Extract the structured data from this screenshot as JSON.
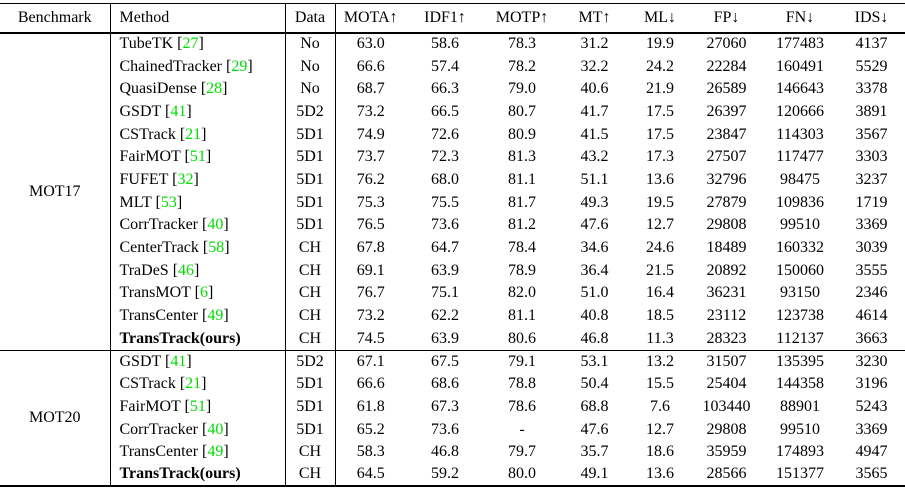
{
  "table": {
    "columns": [
      {
        "label": "Benchmark"
      },
      {
        "label": "Method"
      },
      {
        "label": "Data"
      },
      {
        "label": "MOTA↑"
      },
      {
        "label": "IDF1↑"
      },
      {
        "label": "MOTP↑"
      },
      {
        "label": "MT↑"
      },
      {
        "label": "ML↓"
      },
      {
        "label": "FP↓"
      },
      {
        "label": "FN↓"
      },
      {
        "label": "IDS↓"
      }
    ],
    "sections": [
      {
        "benchmark": "MOT17",
        "rows": [
          {
            "method": "TubeTK",
            "cite": "27",
            "bold": false,
            "data": "No",
            "metrics": [
              "63.0",
              "58.6",
              "78.3",
              "31.2",
              "19.9",
              "27060",
              "177483",
              "4137"
            ]
          },
          {
            "method": "ChainedTracker",
            "cite": "29",
            "bold": false,
            "data": "No",
            "metrics": [
              "66.6",
              "57.4",
              "78.2",
              "32.2",
              "24.2",
              "22284",
              "160491",
              "5529"
            ]
          },
          {
            "method": "QuasiDense",
            "cite": "28",
            "bold": false,
            "data": "No",
            "metrics": [
              "68.7",
              "66.3",
              "79.0",
              "40.6",
              "21.9",
              "26589",
              "146643",
              "3378"
            ]
          },
          {
            "method": "GSDT",
            "cite": "41",
            "bold": false,
            "data": "5D2",
            "metrics": [
              "73.2",
              "66.5",
              "80.7",
              "41.7",
              "17.5",
              "26397",
              "120666",
              "3891"
            ]
          },
          {
            "method": "CSTrack",
            "cite": "21",
            "bold": false,
            "data": "5D1",
            "metrics": [
              "74.9",
              "72.6",
              "80.9",
              "41.5",
              "17.5",
              "23847",
              "114303",
              "3567"
            ]
          },
          {
            "method": "FairMOT",
            "cite": "51",
            "bold": false,
            "data": "5D1",
            "metrics": [
              "73.7",
              "72.3",
              "81.3",
              "43.2",
              "17.3",
              "27507",
              "117477",
              "3303"
            ]
          },
          {
            "method": "FUFET",
            "cite": "32",
            "bold": false,
            "data": "5D1",
            "metrics": [
              "76.2",
              "68.0",
              "81.1",
              "51.1",
              "13.6",
              "32796",
              "98475",
              "3237"
            ]
          },
          {
            "method": "MLT",
            "cite": "53",
            "bold": false,
            "data": "5D1",
            "metrics": [
              "75.3",
              "75.5",
              "81.7",
              "49.3",
              "19.5",
              "27879",
              "109836",
              "1719"
            ]
          },
          {
            "method": "CorrTracker",
            "cite": "40",
            "bold": false,
            "data": "5D1",
            "metrics": [
              "76.5",
              "73.6",
              "81.2",
              "47.6",
              "12.7",
              "29808",
              "99510",
              "3369"
            ]
          },
          {
            "method": "CenterTrack",
            "cite": "58",
            "bold": false,
            "data": "CH",
            "metrics": [
              "67.8",
              "64.7",
              "78.4",
              "34.6",
              "24.6",
              "18489",
              "160332",
              "3039"
            ]
          },
          {
            "method": "TraDeS",
            "cite": "46",
            "bold": false,
            "data": "CH",
            "metrics": [
              "69.1",
              "63.9",
              "78.9",
              "36.4",
              "21.5",
              "20892",
              "150060",
              "3555"
            ]
          },
          {
            "method": "TransMOT",
            "cite": "6",
            "bold": false,
            "data": "CH",
            "metrics": [
              "76.7",
              "75.1",
              "82.0",
              "51.0",
              "16.4",
              "36231",
              "93150",
              "2346"
            ]
          },
          {
            "method": "TransCenter",
            "cite": "49",
            "bold": false,
            "data": "CH",
            "metrics": [
              "73.2",
              "62.2",
              "81.1",
              "40.8",
              "18.5",
              "23112",
              "123738",
              "4614"
            ]
          },
          {
            "method": "TransTrack(ours)",
            "cite": null,
            "bold": true,
            "data": "CH",
            "metrics": [
              "74.5",
              "63.9",
              "80.6",
              "46.8",
              "11.3",
              "28323",
              "112137",
              "3663"
            ]
          }
        ]
      },
      {
        "benchmark": "MOT20",
        "rows": [
          {
            "method": "GSDT",
            "cite": "41",
            "bold": false,
            "data": "5D2",
            "metrics": [
              "67.1",
              "67.5",
              "79.1",
              "53.1",
              "13.2",
              "31507",
              "135395",
              "3230"
            ]
          },
          {
            "method": "CSTrack",
            "cite": "21",
            "bold": false,
            "data": "5D1",
            "metrics": [
              "66.6",
              "68.6",
              "78.8",
              "50.4",
              "15.5",
              "25404",
              "144358",
              "3196"
            ]
          },
          {
            "method": "FairMOT",
            "cite": "51",
            "bold": false,
            "data": "5D1",
            "metrics": [
              "61.8",
              "67.3",
              "78.6",
              "68.8",
              "7.6",
              "103440",
              "88901",
              "5243"
            ]
          },
          {
            "method": "CorrTracker",
            "cite": "40",
            "bold": false,
            "data": "5D1",
            "metrics": [
              "65.2",
              "73.6",
              "-",
              "47.6",
              "12.7",
              "29808",
              "99510",
              "3369"
            ]
          },
          {
            "method": "TransCenter",
            "cite": "49",
            "bold": false,
            "data": "CH",
            "metrics": [
              "58.3",
              "46.8",
              "79.7",
              "35.7",
              "18.6",
              "35959",
              "174893",
              "4947"
            ]
          },
          {
            "method": "TransTrack(ours)",
            "cite": null,
            "bold": true,
            "data": "CH",
            "metrics": [
              "64.5",
              "59.2",
              "80.0",
              "49.1",
              "13.6",
              "28566",
              "151377",
              "3565"
            ]
          }
        ]
      }
    ]
  },
  "colors": {
    "citation_green": "#00dd00",
    "text": "#000000",
    "rule": "#000000"
  }
}
